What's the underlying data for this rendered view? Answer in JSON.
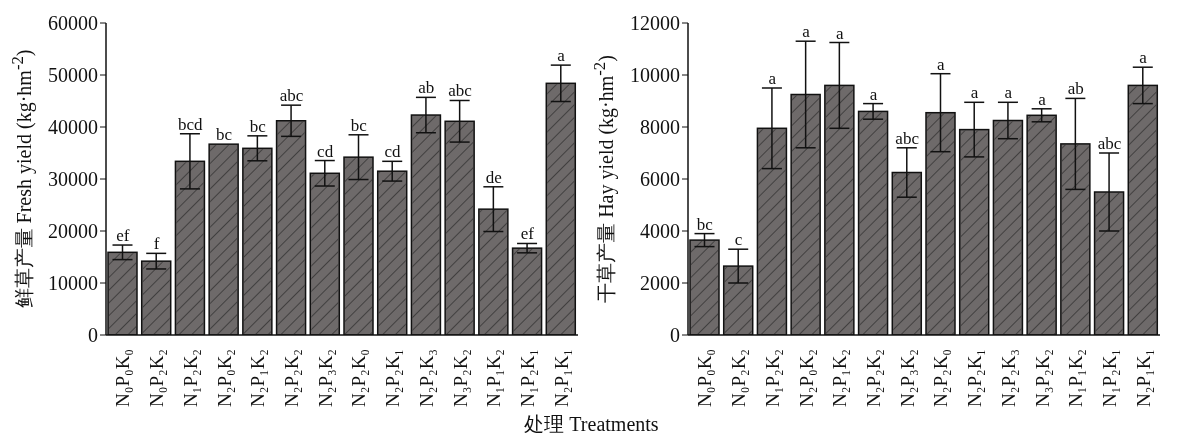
{
  "chart_data": [
    {
      "type": "bar",
      "ylabel": "鲜草产量 Fresh yield (kg·hm$^{-2}$)",
      "xlabel": "处理 Treatments",
      "categories": [
        "N₀P₀K₀",
        "N₀P₂K₂",
        "N₁P₂K₂",
        "N₂P₀K₂",
        "N₂P₁K₂",
        "N₂P₂K₂",
        "N₂P₃K₂",
        "N₂P₂K₀",
        "N₂P₂K₁",
        "N₂P₂K₃",
        "N₃P₂K₂",
        "N₁P₁K₂",
        "N₁P₂K₁",
        "N₂P₁K₁"
      ],
      "values": [
        15900,
        14200,
        33400,
        36700,
        35900,
        41200,
        31100,
        34200,
        31500,
        42300,
        41100,
        24200,
        16700,
        48400
      ],
      "errors": [
        1400,
        1500,
        5300,
        null,
        2400,
        3000,
        2450,
        4300,
        1900,
        3400,
        4000,
        4300,
        900,
        3500
      ],
      "color": "#6e6a6a",
      "ylim": [
        0,
        60000
      ],
      "yticks": [
        0,
        10000,
        20000,
        30000,
        40000,
        50000,
        60000
      ],
      "grid": false,
      "legend": false,
      "annotations": [
        {
          "text": "ef",
          "x": "N₀P₀K₀",
          "y": 17300
        },
        {
          "text": "f",
          "x": "N₀P₂K₂",
          "y": 15700
        },
        {
          "text": "bcd",
          "x": "N₁P₂K₂",
          "y": 38700
        },
        {
          "text": "bc",
          "x": "N₂P₀K₂",
          "y": 36700
        },
        {
          "text": "bc",
          "x": "N₂P₁K₂",
          "y": 38300
        },
        {
          "text": "abc",
          "x": "N₂P₂K₂",
          "y": 44200
        },
        {
          "text": "cd",
          "x": "N₂P₃K₂",
          "y": 33550
        },
        {
          "text": "bc",
          "x": "N₂P₂K₀",
          "y": 38500
        },
        {
          "text": "cd",
          "x": "N₂P₂K₁",
          "y": 33400
        },
        {
          "text": "ab",
          "x": "N₂P₂K₃",
          "y": 45700
        },
        {
          "text": "abc",
          "x": "N₃P₂K₂",
          "y": 45100
        },
        {
          "text": "de",
          "x": "N₁P₁K₂",
          "y": 28500
        },
        {
          "text": "ef",
          "x": "N₁P₂K₁",
          "y": 17600
        },
        {
          "text": "a",
          "x": "N₂P₁K₁",
          "y": 51900
        }
      ]
    },
    {
      "type": "bar",
      "ylabel": "干草产量 Hay yield (kg·hm$^{-2}$)",
      "categories": [
        "N₀P₀K₀",
        "N₀P₂K₂",
        "N₁P₂K₂",
        "N₂P₀K₂",
        "N₂P₁K₂",
        "N₂P₂K₂",
        "N₂P₃K₂",
        "N₂P₂K₀",
        "N₂P₂K₁",
        "N₂P₂K₃",
        "N₃P₂K₂",
        "N₁P₁K₂",
        "N₁P₂K₁",
        "N₂P₁K₁"
      ],
      "values": [
        3650,
        2650,
        7950,
        9250,
        9600,
        8600,
        6250,
        8550,
        7900,
        8250,
        8450,
        7350,
        5500,
        9600
      ],
      "errors": [
        250,
        650,
        1550,
        2050,
        1650,
        300,
        950,
        1500,
        1050,
        700,
        250,
        1750,
        1500,
        700
      ],
      "color": "#6e6a6a",
      "ylim": [
        0,
        12000
      ],
      "yticks": [
        0,
        2000,
        4000,
        6000,
        8000,
        10000,
        12000
      ],
      "grid": false,
      "legend": false,
      "annotations": [
        {
          "text": "bc",
          "x": "N₀P₀K₀",
          "y": 3900
        },
        {
          "text": "c",
          "x": "N₀P₂K₂",
          "y": 3300
        },
        {
          "text": "a",
          "x": "N₁P₂K₂",
          "y": 9500
        },
        {
          "text": "a",
          "x": "N₂P₀K₂",
          "y": 11300
        },
        {
          "text": "a",
          "x": "N₂P₁K₂",
          "y": 11250
        },
        {
          "text": "a",
          "x": "N₂P₂K₂",
          "y": 8900
        },
        {
          "text": "abc",
          "x": "N₂P₃K₂",
          "y": 7200
        },
        {
          "text": "a",
          "x": "N₂P₂K₀",
          "y": 10050
        },
        {
          "text": "a",
          "x": "N₂P₂K₁",
          "y": 8950
        },
        {
          "text": "a",
          "x": "N₂P₂K₃",
          "y": 8950
        },
        {
          "text": "a",
          "x": "N₃P₂K₂",
          "y": 8700
        },
        {
          "text": "ab",
          "x": "N₁P₁K₂",
          "y": 9100
        },
        {
          "text": "abc",
          "x": "N₁P₂K₁",
          "y": 7000
        },
        {
          "text": "a",
          "x": "N₂P₁K₁",
          "y": 10300
        }
      ]
    }
  ]
}
